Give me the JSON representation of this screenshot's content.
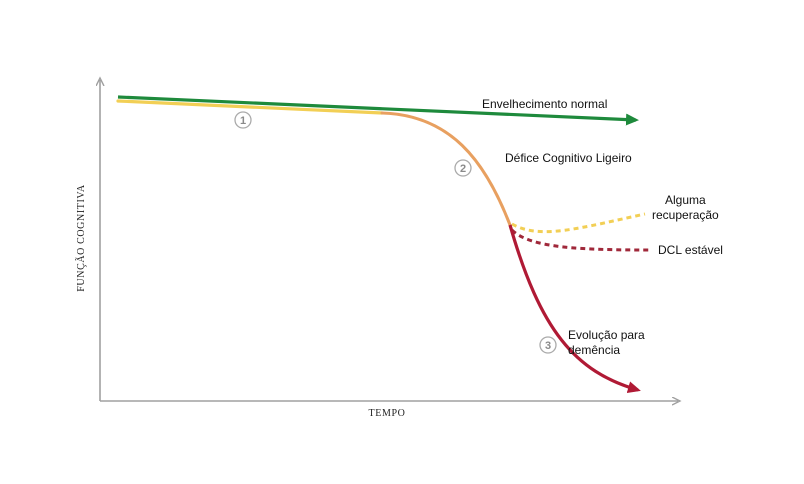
{
  "axes": {
    "x_label": "TEMPO",
    "y_label": "FUNÇÃO COGNITIVA"
  },
  "curves": {
    "normal": {
      "label": "Envelhecimento normal",
      "color": "#1e8a3c"
    },
    "mci": {
      "label": "Défice Cognitivo Ligeiro",
      "color": "#e8a060"
    },
    "baseline": {
      "color": "#f2cf55"
    },
    "recovery": {
      "label_line1": "Alguma",
      "label_line2": "recuperação",
      "color": "#f2cf55"
    },
    "stable": {
      "label": "DCL estável",
      "color": "#a0283a"
    },
    "dementia": {
      "label_line1": "Evolução para",
      "label_line2": "demência",
      "color": "#b01a35"
    }
  },
  "markers": [
    "1",
    "2",
    "3"
  ],
  "colors": {
    "axis": "#a0a0a0",
    "marker_stroke": "#aaaaaa"
  }
}
